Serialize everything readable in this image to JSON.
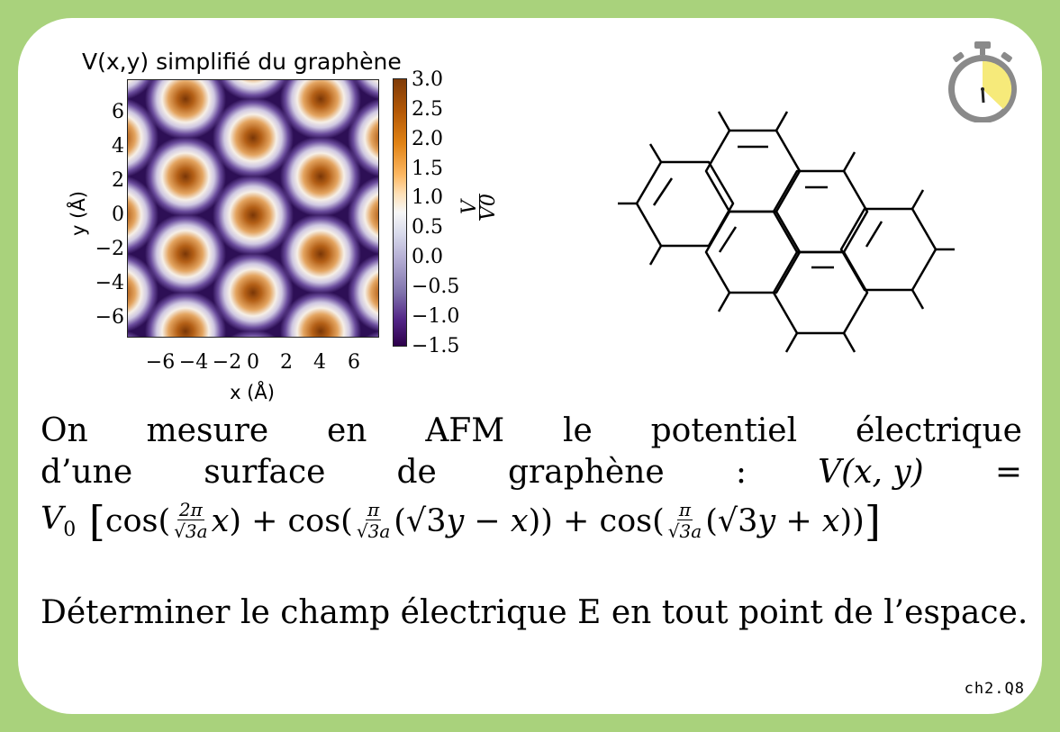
{
  "plot": {
    "title": "V(x,y) simplifié du graphène",
    "xlabel": "x (Å)",
    "ylabel": "y (Å)",
    "yticks": [
      "6",
      "4",
      "2",
      "0",
      "−2",
      "−4",
      "−6"
    ],
    "xticks": [
      "−6",
      "−4",
      "−2",
      "0",
      "2",
      "4",
      "6"
    ],
    "colorbar_ticks": [
      "3.0",
      "2.5",
      "2.0",
      "1.5",
      "1.0",
      "0.5",
      "0.0",
      "−0.5",
      "−1.0",
      "−1.5"
    ],
    "colorbar_label_num": "V",
    "colorbar_label_den": "V0",
    "colormap": [
      "#7f3b08",
      "#e08214",
      "#f7f7f7",
      "#8073ac",
      "#2d004b"
    ]
  },
  "statement": {
    "line1_words": [
      "On",
      "mesure",
      "en",
      "AFM",
      "le",
      "potentiel",
      "électrique"
    ],
    "line2_words": [
      "d’une",
      "surface",
      "de",
      "graphène",
      ":",
      "V(x, y)",
      "="
    ],
    "formula_text": "V0 [cos(2π/√3a x) + cos(π/√3a(√3y − x)) + cos(π/√3a(√3y + x))]"
  },
  "question": "Déterminer le champ électrique E en tout point de l’espace.",
  "ref": "ch2.Q8",
  "timer": {
    "icon": "stopwatch-icon",
    "face": "#8a8a8a",
    "fill": "#f6ea7a"
  },
  "colors": {
    "border": "#a9d27c",
    "background": "#ffffff"
  }
}
